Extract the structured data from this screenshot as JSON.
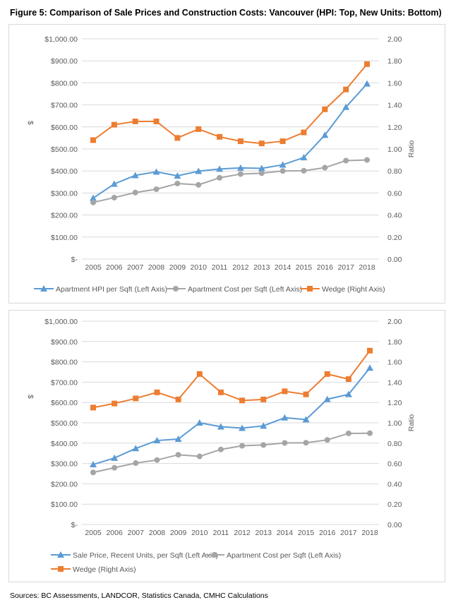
{
  "title": "Figure 5: Comparison of Sale Prices and Construction Costs: Vancouver (HPI: Top, New Units: Bottom)",
  "sources": "Sources: BC Assessments, LANDCOR, Statistics Canada, CMHC Calculations",
  "chart_data": [
    {
      "type": "line",
      "title": "",
      "xlabel": "",
      "ylabel": "$",
      "y2label": "Ratio",
      "categories": [
        "2005",
        "2006",
        "2007",
        "2008",
        "2009",
        "2010",
        "2011",
        "2012",
        "2013",
        "2014",
        "2015",
        "2016",
        "2017",
        "2018"
      ],
      "ylim": [
        0,
        1000
      ],
      "y2lim": [
        0,
        2
      ],
      "yticks": [
        "$-",
        "$100.00",
        "$200.00",
        "$300.00",
        "$400.00",
        "$500.00",
        "$600.00",
        "$700.00",
        "$800.00",
        "$900.00",
        "$1,000.00"
      ],
      "y2ticks": [
        "0.00",
        "0.20",
        "0.40",
        "0.60",
        "0.80",
        "1.00",
        "1.20",
        "1.40",
        "1.60",
        "1.80",
        "2.00"
      ],
      "grid": true,
      "legend": "bottom",
      "series": [
        {
          "name": "Apartment HPI per Sqft (Left Axis)",
          "axis": "left",
          "marker": "triangle",
          "color": "#5b9bd5",
          "values": [
            277,
            341,
            380,
            396,
            378,
            399,
            409,
            414,
            412,
            428,
            461,
            563,
            690,
            796
          ]
        },
        {
          "name": "Apartment Cost per Sqft (Left Axis)",
          "axis": "left",
          "marker": "circle",
          "color": "#a5a5a5",
          "values": [
            257,
            279,
            302,
            317,
            343,
            337,
            369,
            386,
            390,
            400,
            401,
            415,
            447,
            450
          ]
        },
        {
          "name": "Wedge (Right Axis)",
          "axis": "right",
          "marker": "square",
          "color": "#ed7d31",
          "values": [
            1.08,
            1.22,
            1.25,
            1.25,
            1.1,
            1.18,
            1.11,
            1.07,
            1.05,
            1.07,
            1.15,
            1.36,
            1.54,
            1.77
          ]
        }
      ]
    },
    {
      "type": "line",
      "title": "",
      "xlabel": "",
      "ylabel": "$",
      "y2label": "Ratio",
      "categories": [
        "2005",
        "2006",
        "2007",
        "2008",
        "2009",
        "2010",
        "2011",
        "2012",
        "2013",
        "2014",
        "2015",
        "2016",
        "2017",
        "2018"
      ],
      "ylim": [
        0,
        1000
      ],
      "y2lim": [
        0,
        2
      ],
      "yticks": [
        "$-",
        "$100.00",
        "$200.00",
        "$300.00",
        "$400.00",
        "$500.00",
        "$600.00",
        "$700.00",
        "$800.00",
        "$900.00",
        "$1,000.00"
      ],
      "y2ticks": [
        "0.00",
        "0.20",
        "0.40",
        "0.60",
        "0.80",
        "1.00",
        "1.20",
        "1.40",
        "1.60",
        "1.80",
        "2.00"
      ],
      "grid": true,
      "legend": "bottom",
      "series": [
        {
          "name": "Sale Price, Recent Units, per Sqft (Left Axis)",
          "axis": "left",
          "marker": "triangle",
          "color": "#5b9bd5",
          "values": [
            295,
            327,
            374,
            413,
            420,
            500,
            481,
            474,
            485,
            525,
            516,
            616,
            640,
            770
          ]
        },
        {
          "name": "Apartment Cost per Sqft (Left Axis)",
          "axis": "left",
          "marker": "circle",
          "color": "#a5a5a5",
          "values": [
            256,
            279,
            302,
            317,
            343,
            335,
            369,
            387,
            391,
            401,
            402,
            416,
            448,
            449
          ]
        },
        {
          "name": "Wedge (Right Axis)",
          "axis": "right",
          "marker": "square",
          "color": "#ed7d31",
          "values": [
            1.15,
            1.19,
            1.24,
            1.3,
            1.23,
            1.48,
            1.3,
            1.22,
            1.23,
            1.31,
            1.28,
            1.48,
            1.43,
            1.71
          ]
        }
      ]
    }
  ]
}
